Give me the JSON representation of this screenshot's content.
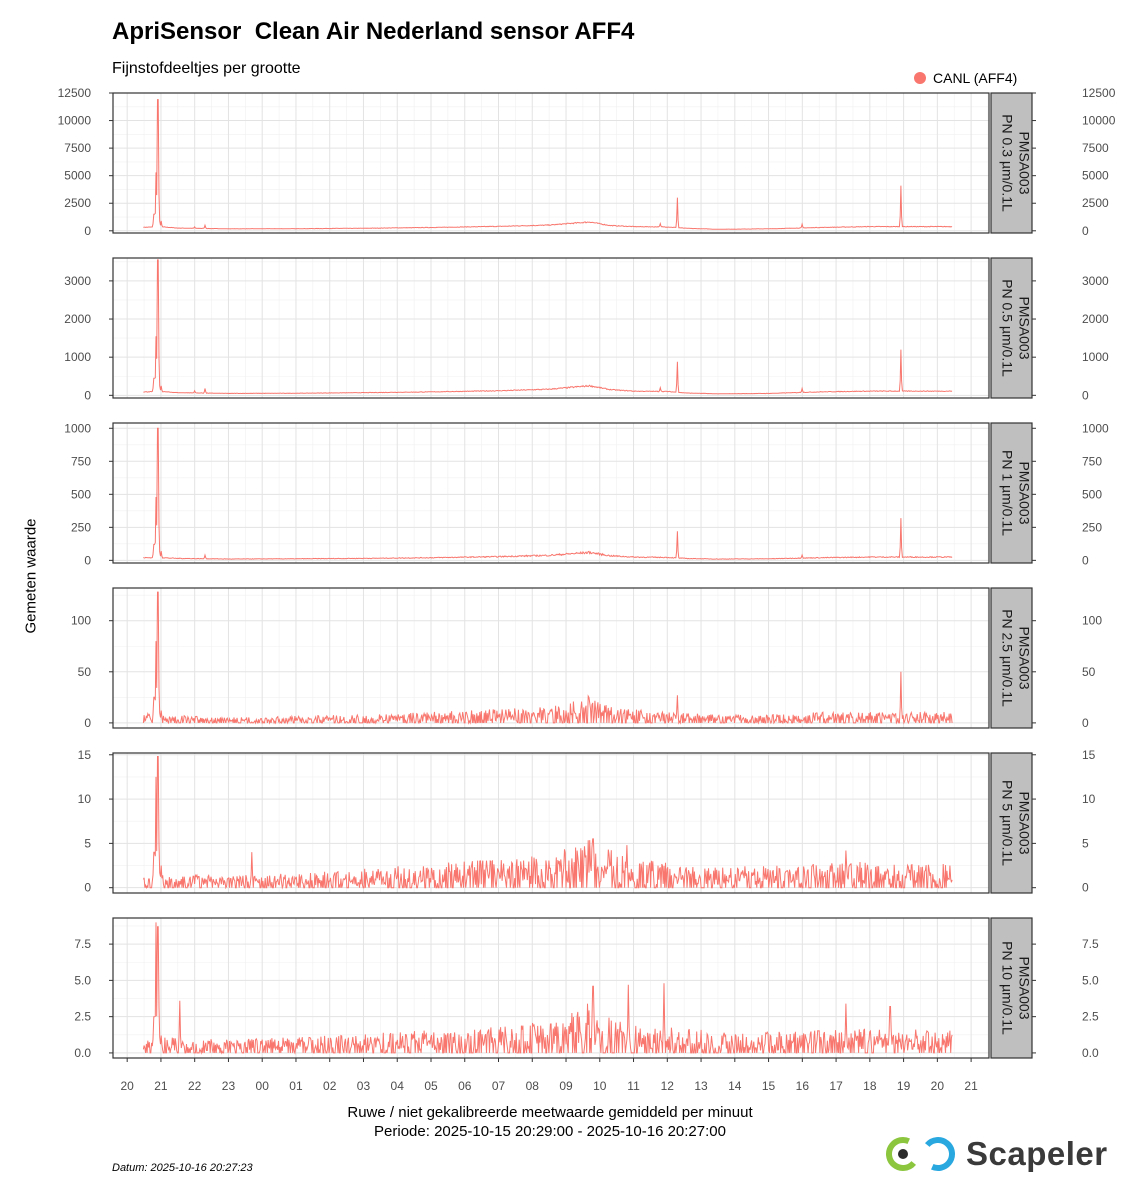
{
  "title": "ApriSensor  Clean Air Nederland sensor AFF4",
  "subtitle": "Fijnstofdeeltjes per grootte",
  "legend": {
    "label": "CANL (AFF4)",
    "color": "#F8766D"
  },
  "ylabel": "Gemeten waarde",
  "xlabel": "Ruwe / niet gekalibreerde meetwaarde gemiddeld per minuut",
  "period": "Periode: 2025-10-15 20:29:00 - 2025-10-16 20:27:00",
  "datum": "Datum: 2025-10-16 20:27:23",
  "logo_text": "Scapeler",
  "chart_data": {
    "type": "line",
    "x_unit": "hour of day",
    "x_ticks": [
      "20",
      "21",
      "22",
      "23",
      "00",
      "01",
      "02",
      "03",
      "04",
      "05",
      "06",
      "07",
      "08",
      "09",
      "10",
      "11",
      "12",
      "13",
      "14",
      "15",
      "16",
      "17",
      "18",
      "19",
      "20",
      "21"
    ],
    "x_range": [
      "2025-10-15 19:35",
      "2025-10-16 21:32"
    ],
    "series_color": "#F8766D",
    "panels": [
      {
        "strip": [
          "PMSA003",
          "PN 0.3 µm/0.1L"
        ],
        "ylim": [
          -200,
          12500
        ],
        "yticks": [
          0,
          2500,
          5000,
          7500,
          10000,
          12500
        ],
        "ytick_labels": [
          "0",
          "2500",
          "5000",
          "7500",
          "10000",
          "12500"
        ],
        "baseline": [
          [
            20.48,
            320
          ],
          [
            21.0,
            360
          ],
          [
            21.5,
            250
          ],
          [
            23.0,
            180
          ],
          [
            1.0,
            190
          ],
          [
            3.0,
            230
          ],
          [
            5.0,
            300
          ],
          [
            7.0,
            400
          ],
          [
            8.5,
            520
          ],
          [
            9.7,
            800
          ],
          [
            10.3,
            480
          ],
          [
            11.0,
            380
          ],
          [
            12.0,
            350
          ],
          [
            12.6,
            220
          ],
          [
            13.5,
            140
          ],
          [
            15.0,
            180
          ],
          [
            16.5,
            300
          ],
          [
            18.0,
            380
          ],
          [
            19.5,
            400
          ],
          [
            20.45,
            380
          ]
        ],
        "peaks": [
          [
            20.8,
            1500
          ],
          [
            20.86,
            5300
          ],
          [
            20.91,
            11900
          ],
          [
            20.95,
            2500
          ],
          [
            21.0,
            900
          ],
          [
            22.0,
            350
          ],
          [
            22.3,
            500
          ],
          [
            11.8,
            650
          ],
          [
            12.3,
            3000
          ],
          [
            16.0,
            600
          ],
          [
            18.92,
            4100
          ]
        ],
        "noise": 0.07
      },
      {
        "strip": [
          "PMSA003",
          "PN 0.5 µm/0.1L"
        ],
        "ylim": [
          -70,
          3600
        ],
        "yticks": [
          0,
          1000,
          2000,
          3000
        ],
        "ytick_labels": [
          "0",
          "1000",
          "2000",
          "3000"
        ],
        "baseline": [
          [
            20.48,
            90
          ],
          [
            21.0,
            100
          ],
          [
            21.5,
            70
          ],
          [
            23.0,
            50
          ],
          [
            1.0,
            55
          ],
          [
            3.0,
            70
          ],
          [
            5.0,
            90
          ],
          [
            7.0,
            120
          ],
          [
            8.5,
            160
          ],
          [
            9.7,
            250
          ],
          [
            10.3,
            150
          ],
          [
            11.0,
            110
          ],
          [
            12.0,
            100
          ],
          [
            12.6,
            60
          ],
          [
            13.5,
            40
          ],
          [
            15.0,
            50
          ],
          [
            16.5,
            90
          ],
          [
            18.0,
            110
          ],
          [
            19.5,
            120
          ],
          [
            20.45,
            110
          ]
        ],
        "peaks": [
          [
            20.8,
            450
          ],
          [
            20.86,
            1550
          ],
          [
            20.91,
            3550
          ],
          [
            20.95,
            700
          ],
          [
            21.0,
            250
          ],
          [
            22.0,
            120
          ],
          [
            22.3,
            180
          ],
          [
            11.8,
            200
          ],
          [
            12.3,
            880
          ],
          [
            16.0,
            180
          ],
          [
            18.92,
            1200
          ]
        ],
        "noise": 0.08
      },
      {
        "strip": [
          "PMSA003",
          "PN 1 µm/0.1L"
        ],
        "ylim": [
          -20,
          1040
        ],
        "yticks": [
          0,
          250,
          500,
          750,
          1000
        ],
        "ytick_labels": [
          "0",
          "250",
          "500",
          "750",
          "1000"
        ],
        "baseline": [
          [
            20.48,
            20
          ],
          [
            21.0,
            20
          ],
          [
            21.5,
            15
          ],
          [
            23.0,
            10
          ],
          [
            1.0,
            12
          ],
          [
            3.0,
            15
          ],
          [
            5.0,
            20
          ],
          [
            7.0,
            28
          ],
          [
            8.5,
            38
          ],
          [
            9.7,
            60
          ],
          [
            10.3,
            35
          ],
          [
            11.0,
            25
          ],
          [
            12.0,
            22
          ],
          [
            12.6,
            14
          ],
          [
            13.5,
            10
          ],
          [
            15.0,
            12
          ],
          [
            16.5,
            20
          ],
          [
            18.0,
            25
          ],
          [
            19.5,
            28
          ],
          [
            20.45,
            25
          ]
        ],
        "peaks": [
          [
            20.8,
            120
          ],
          [
            20.86,
            480
          ],
          [
            20.91,
            1000
          ],
          [
            20.95,
            200
          ],
          [
            21.0,
            70
          ],
          [
            22.3,
            40
          ],
          [
            12.3,
            220
          ],
          [
            16.0,
            40
          ],
          [
            18.92,
            320
          ]
        ],
        "noise": 0.15
      },
      {
        "strip": [
          "PMSA003",
          "PN 2.5 µm/0.1L"
        ],
        "ylim": [
          -5,
          132
        ],
        "yticks": [
          0,
          50,
          100
        ],
        "ytick_labels": [
          "0",
          "50",
          "100"
        ],
        "baseline": [
          [
            20.48,
            3
          ],
          [
            21.0,
            3
          ],
          [
            23.0,
            2
          ],
          [
            1.0,
            2.5
          ],
          [
            3.0,
            3
          ],
          [
            5.0,
            4
          ],
          [
            7.0,
            5
          ],
          [
            8.5,
            6
          ],
          [
            9.7,
            10
          ],
          [
            10.3,
            6
          ],
          [
            11.0,
            5
          ],
          [
            12.0,
            4
          ],
          [
            13.5,
            3
          ],
          [
            15.0,
            3
          ],
          [
            16.5,
            4
          ],
          [
            18.0,
            4
          ],
          [
            19.5,
            4
          ],
          [
            20.45,
            4
          ]
        ],
        "peaks": [
          [
            20.62,
            9
          ],
          [
            20.8,
            25
          ],
          [
            20.86,
            80
          ],
          [
            20.91,
            128
          ],
          [
            20.95,
            30
          ],
          [
            21.0,
            12
          ],
          [
            12.3,
            27
          ],
          [
            18.92,
            50
          ],
          [
            20.35,
            13
          ]
        ],
        "noise": 0.9
      },
      {
        "strip": [
          "PMSA003",
          "PN 5 µm/0.1L"
        ],
        "ylim": [
          -0.6,
          15.2
        ],
        "yticks": [
          0,
          5,
          10,
          15
        ],
        "ytick_labels": [
          "0",
          "5",
          "10",
          "15"
        ],
        "baseline": [
          [
            20.48,
            0.5
          ],
          [
            21.0,
            0.6
          ],
          [
            23.0,
            0.5
          ],
          [
            1.0,
            0.6
          ],
          [
            3.0,
            0.8
          ],
          [
            5.0,
            1.0
          ],
          [
            7.0,
            1.2
          ],
          [
            8.5,
            1.4
          ],
          [
            9.7,
            2.2
          ],
          [
            10.3,
            1.6
          ],
          [
            11.0,
            1.3
          ],
          [
            12.0,
            1.1
          ],
          [
            13.5,
            0.9
          ],
          [
            15.0,
            0.9
          ],
          [
            16.5,
            1.0
          ],
          [
            18.0,
            1.1
          ],
          [
            19.5,
            1.1
          ],
          [
            20.45,
            1.0
          ]
        ],
        "peaks": [
          [
            20.8,
            4
          ],
          [
            20.86,
            12.5
          ],
          [
            20.91,
            14.8
          ],
          [
            20.95,
            5
          ],
          [
            21.0,
            2.5
          ],
          [
            23.7,
            4
          ],
          [
            9.8,
            5.5
          ],
          [
            10.8,
            4.8
          ],
          [
            17.3,
            4.2
          ],
          [
            20.3,
            3.3
          ]
        ],
        "noise": 1.1
      },
      {
        "strip": [
          "PMSA003",
          "PN 10 µm/0.1L"
        ],
        "ylim": [
          -0.35,
          9.3
        ],
        "yticks": [
          0,
          2.5,
          5,
          7.5
        ],
        "ytick_labels": [
          "0.0",
          "2.5",
          "5.0",
          "7.5"
        ],
        "baseline": [
          [
            20.48,
            0.3
          ],
          [
            21.0,
            0.4
          ],
          [
            23.0,
            0.35
          ],
          [
            1.0,
            0.4
          ],
          [
            3.0,
            0.5
          ],
          [
            5.0,
            0.6
          ],
          [
            7.0,
            0.7
          ],
          [
            8.5,
            0.8
          ],
          [
            9.7,
            1.3
          ],
          [
            10.3,
            0.9
          ],
          [
            11.0,
            0.8
          ],
          [
            12.0,
            0.7
          ],
          [
            13.5,
            0.55
          ],
          [
            15.0,
            0.55
          ],
          [
            16.5,
            0.6
          ],
          [
            18.0,
            0.65
          ],
          [
            19.5,
            0.65
          ],
          [
            20.45,
            0.6
          ]
        ],
        "peaks": [
          [
            20.8,
            2.5
          ],
          [
            20.86,
            9.0
          ],
          [
            20.91,
            8.7
          ],
          [
            20.95,
            3.2
          ],
          [
            21.0,
            1.2
          ],
          [
            21.55,
            3.6
          ],
          [
            9.8,
            4.6
          ],
          [
            10.85,
            4.7
          ],
          [
            11.9,
            4.8
          ],
          [
            17.3,
            3.4
          ],
          [
            18.6,
            3.2
          ],
          [
            20.3,
            2.6
          ]
        ],
        "noise": 1.3
      }
    ]
  }
}
